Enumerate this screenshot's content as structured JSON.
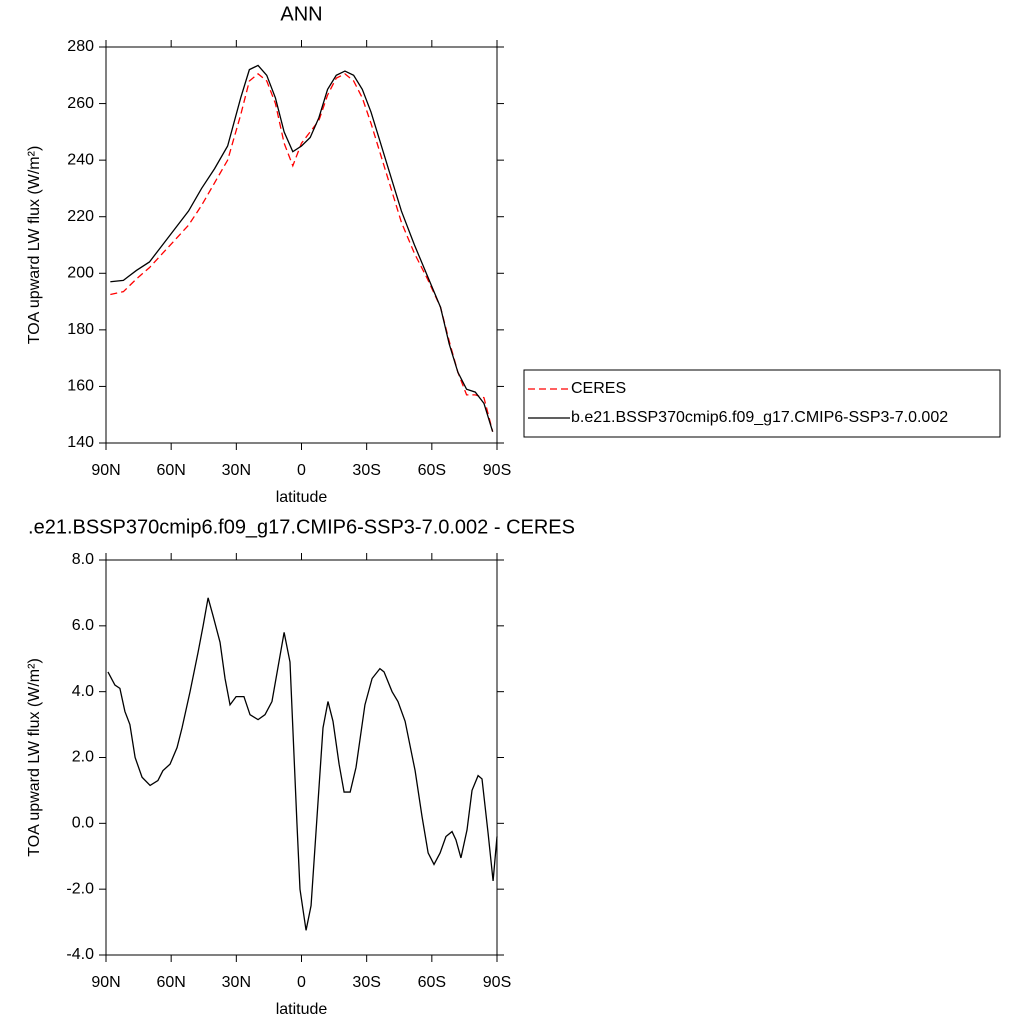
{
  "chart_data": [
    {
      "type": "line",
      "title": "ANN",
      "x_label": "latitude",
      "y_label": "TOA upward LW flux (W/m²)",
      "x": [
        88,
        82,
        76,
        70,
        64,
        58,
        52,
        46,
        40,
        34,
        28,
        24,
        20,
        16,
        12,
        8,
        4,
        0,
        -4,
        -8,
        -12,
        -16,
        -20,
        -24,
        -28,
        -32,
        -36,
        -40,
        -46,
        -52,
        -58,
        -64,
        -68,
        -72,
        -76,
        -80,
        -84,
        -88
      ],
      "xlim": [
        90,
        -90
      ],
      "xticks": [
        {
          "value": 90,
          "label": "90N"
        },
        {
          "value": 60,
          "label": "60N"
        },
        {
          "value": 30,
          "label": "30N"
        },
        0,
        {
          "value": -30,
          "label": "30S"
        },
        {
          "value": -60,
          "label": "60S"
        },
        {
          "value": -90,
          "label": "90S"
        }
      ],
      "ylim": [
        140,
        280
      ],
      "yticks": [
        140,
        160,
        180,
        200,
        220,
        240,
        260,
        280
      ],
      "legend": "outside-right",
      "series": [
        {
          "name": "CERES",
          "color": "#ff0000",
          "linestyle": "dashed",
          "values": [
            192.5,
            193.5,
            198,
            202,
            207,
            212,
            217,
            224,
            232,
            240,
            256,
            268,
            270.5,
            268,
            260,
            246,
            238,
            246,
            250,
            254,
            263,
            269,
            270.5,
            268,
            262,
            253,
            243,
            233,
            218,
            207,
            198,
            188,
            176,
            165,
            157,
            157,
            156,
            144
          ]
        },
        {
          "name": "b.e21.BSSP370cmip6.f09_g17.CMIP6-SSP3-7.0.002",
          "color": "#000000",
          "linestyle": "solid",
          "values": [
            197,
            197.5,
            201,
            204,
            210,
            216,
            222,
            230,
            237,
            245,
            262,
            272,
            273.5,
            270,
            262,
            250,
            243,
            245,
            248,
            255,
            265,
            270,
            271.5,
            270,
            265,
            257,
            247,
            237,
            222,
            210,
            199,
            188,
            175,
            165,
            159,
            158,
            154,
            144
          ]
        }
      ]
    },
    {
      "type": "line",
      "title": ".e21.BSSP370cmip6.f09_g17.CMIP6-SSP3-7.0.002 - CERES",
      "x_label": "latitude",
      "y_label": "TOA upward LW flux (W/m²)",
      "x": [
        89.1,
        85.9,
        83.6,
        81.3,
        79.0,
        76.6,
        73.4,
        69.7,
        66.1,
        63.8,
        60.5,
        57.3,
        55.0,
        51.3,
        47.6,
        45.3,
        43.0,
        40.7,
        37.5,
        35.2,
        32.9,
        30.1,
        26.5,
        23.7,
        20.0,
        16.8,
        13.6,
        8.0,
        5.3,
        2.1,
        0.7,
        -2.1,
        -4.4,
        -9.9,
        -12.2,
        -14.5,
        -17.3,
        -19.6,
        -22.4,
        -25.1,
        -29.2,
        -32.5,
        -36.1,
        -38.0,
        -41.7,
        -44.4,
        -47.7,
        -52.3,
        -55.5,
        -58.3,
        -61.0,
        -63.8,
        -66.5,
        -69.3,
        -71.1,
        -73.4,
        -76.2,
        -78.5,
        -81.3,
        -83.1,
        -85.9,
        -88.2,
        -90
      ],
      "xlim": [
        90,
        -90
      ],
      "xticks": [
        {
          "value": 90,
          "label": "90N"
        },
        {
          "value": 60,
          "label": "60N"
        },
        {
          "value": 30,
          "label": "30N"
        },
        0,
        {
          "value": -30,
          "label": "30S"
        },
        {
          "value": -60,
          "label": "60S"
        },
        {
          "value": -90,
          "label": "90S"
        }
      ],
      "ylim": [
        -4,
        8
      ],
      "yticks": [
        {
          "value": -4,
          "label": "-4.0"
        },
        {
          "value": -2,
          "label": "-2.0"
        },
        {
          "value": 0,
          "label": "0.0"
        },
        {
          "value": 2,
          "label": "2.0"
        },
        {
          "value": 4,
          "label": "4.0"
        },
        {
          "value": 6,
          "label": "6.0"
        },
        {
          "value": 8,
          "label": "8.0"
        }
      ],
      "series": [
        {
          "color": "#000000",
          "linestyle": "solid",
          "values": [
            4.6,
            4.2,
            4.1,
            3.4,
            3.0,
            2.0,
            1.4,
            1.15,
            1.3,
            1.6,
            1.8,
            2.3,
            2.9,
            4.0,
            5.2,
            6.0,
            6.85,
            6.3,
            5.5,
            4.4,
            3.6,
            3.85,
            3.85,
            3.3,
            3.15,
            3.3,
            3.7,
            5.8,
            4.9,
            0,
            -2.0,
            -3.25,
            -2.5,
            2.9,
            3.7,
            3.1,
            1.8,
            0.95,
            0.95,
            1.7,
            3.6,
            4.4,
            4.7,
            4.6,
            4.0,
            3.7,
            3.1,
            1.6,
            0.2,
            -0.9,
            -1.25,
            -0.9,
            -0.4,
            -0.25,
            -0.5,
            -1.05,
            -0.2,
            1.0,
            1.45,
            1.35,
            -0.3,
            -1.75,
            -0.4
          ]
        }
      ]
    }
  ]
}
